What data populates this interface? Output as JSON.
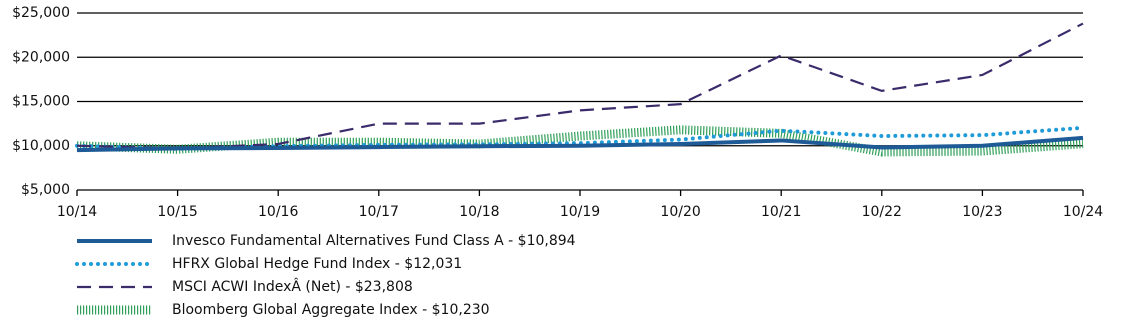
{
  "chart_data": {
    "type": "line",
    "categories": [
      "10/14",
      "10/15",
      "10/16",
      "10/17",
      "10/18",
      "10/19",
      "10/20",
      "10/21",
      "10/22",
      "10/23",
      "10/24"
    ],
    "ylim": [
      5000,
      25000
    ],
    "yticks": [
      {
        "value": 5000,
        "label": "$5,000"
      },
      {
        "value": 10000,
        "label": "$10,000"
      },
      {
        "value": 15000,
        "label": "$15,000"
      },
      {
        "value": 20000,
        "label": "$20,000"
      },
      {
        "value": 25000,
        "label": "$25,000"
      }
    ],
    "grid": true,
    "legend": "bottom",
    "series": [
      {
        "name": "Invesco Fundamental Alternatives Fund Class A - $10,894",
        "color": "#1d5a96",
        "line_style": "solid",
        "values": [
          9500,
          9700,
          9750,
          9850,
          9950,
          10000,
          10200,
          10600,
          9800,
          10000,
          10894
        ]
      },
      {
        "name": "HFRX Global Hedge Fund Index - $12,031",
        "color": "#1f9bd7",
        "line_style": "dotted",
        "values": [
          10000,
          9650,
          9950,
          10100,
          10150,
          10300,
          10700,
          11700,
          11100,
          11200,
          12031
        ]
      },
      {
        "name": "MSCI ACWI IndexÂ (Net) - $23,808",
        "color": "#3b2b6b",
        "line_style": "dashed",
        "values": [
          10000,
          9700,
          10200,
          12500,
          12500,
          14000,
          14700,
          20200,
          16200,
          18000,
          23808
        ]
      },
      {
        "name": "Bloomberg Global Aggregate Index - $10,230",
        "color": "#2e9e58",
        "line_style": "hatched",
        "values": [
          10000,
          9600,
          10400,
          10400,
          10200,
          11100,
          11800,
          11400,
          9300,
          9400,
          10230
        ]
      }
    ]
  }
}
